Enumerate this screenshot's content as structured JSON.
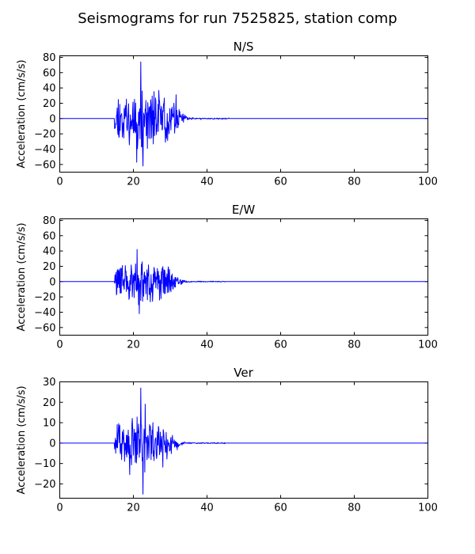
{
  "figure": {
    "title": "Seismograms for run 7525825, station comp",
    "trace_color": "#0000ff"
  },
  "chart_data": [
    {
      "type": "line",
      "title": "N/S",
      "xlabel": "",
      "ylabel": "Acceleration (cm/s/s)",
      "xlim": [
        0,
        100
      ],
      "ylim": [
        -70,
        82
      ],
      "xticks": [
        0,
        20,
        40,
        60,
        80,
        100
      ],
      "yticks": [
        -60,
        -40,
        -20,
        0,
        20,
        40,
        60,
        80
      ],
      "waveform": {
        "onset": 14.8,
        "peak_time": 22,
        "strong_motion_end": 31,
        "coda_end": 38,
        "max": 74,
        "min": -62,
        "typical_amplitude": 35,
        "seed": 11
      }
    },
    {
      "type": "line",
      "title": "E/W",
      "xlabel": "",
      "ylabel": "Acceleration (cm/s/s)",
      "xlim": [
        0,
        100
      ],
      "ylim": [
        -70,
        82
      ],
      "xticks": [
        0,
        20,
        40,
        60,
        80,
        100
      ],
      "yticks": [
        -60,
        -40,
        -20,
        0,
        20,
        40,
        60,
        80
      ],
      "waveform": {
        "onset": 14.8,
        "peak_time": 21,
        "strong_motion_end": 30,
        "coda_end": 37,
        "max": 42,
        "min": -42,
        "typical_amplitude": 25,
        "seed": 29
      }
    },
    {
      "type": "line",
      "title": "Ver",
      "xlabel": "",
      "ylabel": "Acceleration (cm/s/s)",
      "xlim": [
        0,
        100
      ],
      "ylim": [
        -27,
        30
      ],
      "xticks": [
        0,
        20,
        40,
        60,
        80,
        100
      ],
      "yticks": [
        -20,
        -10,
        0,
        10,
        20,
        30
      ],
      "waveform": {
        "onset": 14.8,
        "peak_time": 22,
        "strong_motion_end": 29,
        "coda_end": 37,
        "max": 27,
        "min": -25,
        "typical_amplitude": 12,
        "seed": 47
      }
    }
  ]
}
